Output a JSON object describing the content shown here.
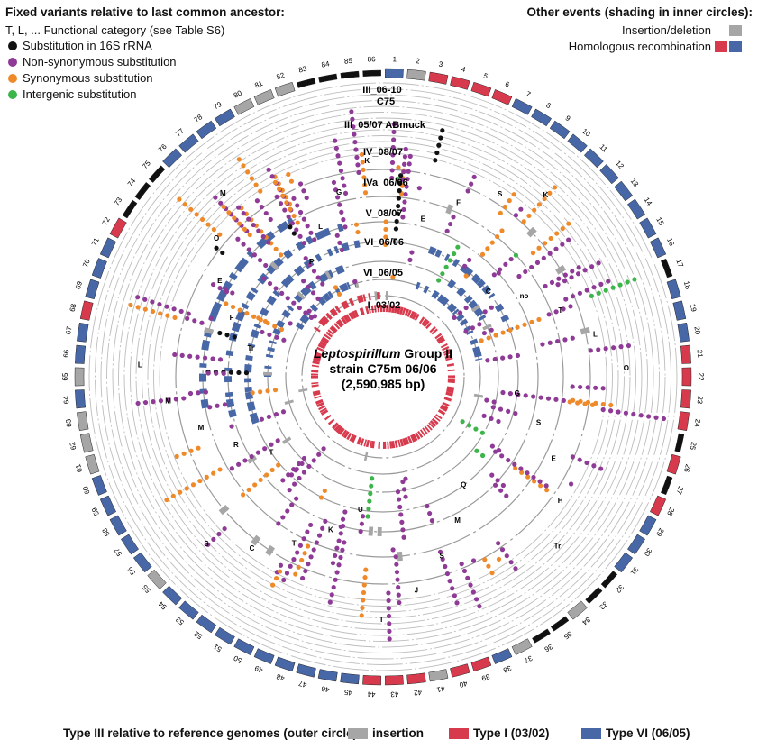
{
  "legend_fixed": {
    "title": "Fixed variants relative to last common ancestor:",
    "subtitle": "T, L, ... Functional category (see Table S6)",
    "items": [
      {
        "label": "Substitution in 16S rRNA",
        "color": "#111111"
      },
      {
        "label": "Non-synonymous substitution",
        "color": "#8e3a96"
      },
      {
        "label": "Synonymous substitution",
        "color": "#ef8a2b"
      },
      {
        "label": "Intergenic substitution",
        "color": "#3cb54a"
      }
    ]
  },
  "legend_other": {
    "title": "Other events (shading in inner circles):",
    "items": [
      {
        "label": "Insertion/deletion",
        "colors": [
          "#a6a6a6"
        ]
      },
      {
        "label": "Homologous recombination",
        "colors": [
          "#d83a4d",
          "#4767a7"
        ]
      }
    ]
  },
  "legend_bottom": {
    "title": "Type III relative to reference genomes (outer circle):",
    "items": [
      {
        "label": "insertion",
        "color": "#a6a6a6"
      },
      {
        "label": "Type I (03/02)",
        "color": "#d83a4d"
      },
      {
        "label": "Type VI (06/05)",
        "color": "#4767a7"
      }
    ]
  },
  "center": {
    "line1_italic": "Leptospirillum",
    "line1_rest": " Group II",
    "line2": "strain C75m 06/06",
    "line3": "(2,590,985 bp)"
  },
  "rings": [
    {
      "label": "III_06-10"
    },
    {
      "label": "C75"
    },
    {
      "label": "III_05/07 ABmuck"
    },
    {
      "label": "IV_08/07"
    },
    {
      "label": "IVa_06/06"
    },
    {
      "label": "V_08/07"
    },
    {
      "label": "VI_06/06"
    },
    {
      "label": "VI_06/05"
    },
    {
      "label": "I_03/02"
    }
  ],
  "segments": [
    "1",
    "2",
    "3",
    "4",
    "5",
    "6",
    "7",
    "8",
    "9",
    "10",
    "11",
    "12",
    "13",
    "14",
    "15",
    "16",
    "17",
    "18",
    "19",
    "20",
    "21",
    "22",
    "23",
    "24",
    "25",
    "26",
    "27",
    "28",
    "29",
    "30",
    "31",
    "32",
    "33",
    "34",
    "35",
    "36",
    "37",
    "38",
    "39",
    "40",
    "41",
    "42",
    "43",
    "44",
    "45",
    "46",
    "47",
    "48",
    "49",
    "50",
    "51",
    "52",
    "53",
    "54",
    "55",
    "56",
    "57",
    "58",
    "59",
    "60",
    "61",
    "62",
    "63",
    "64",
    "65",
    "66",
    "67",
    "68",
    "69",
    "70",
    "71",
    "72",
    "73",
    "74",
    "75",
    "76",
    "77",
    "78",
    "79",
    "80",
    "81",
    "82",
    "83",
    "84",
    "85",
    "86"
  ],
  "segment_colors": [
    "#4767a7",
    "#a6a6a6",
    "#d83a4d",
    "#d83a4d",
    "#d83a4d",
    "#d83a4d",
    "#4767a7",
    "#4767a7",
    "#4767a7",
    "#4767a7",
    "#4767a7",
    "#4767a7",
    "#4767a7",
    "#4767a7",
    "#4767a7",
    "#4767a7",
    "#111111",
    "#4767a7",
    "#4767a7",
    "#4767a7",
    "#d83a4d",
    "#d83a4d",
    "#d83a4d",
    "#d83a4d",
    "#111111",
    "#d83a4d",
    "#111111",
    "#d83a4d",
    "#4767a7",
    "#4767a7",
    "#4767a7",
    "#111111",
    "#111111",
    "#a6a6a6",
    "#111111",
    "#111111",
    "#a6a6a6",
    "#4767a7",
    "#d83a4d",
    "#d83a4d",
    "#a6a6a6",
    "#d83a4d",
    "#d83a4d",
    "#d83a4d",
    "#4767a7",
    "#4767a7",
    "#4767a7",
    "#4767a7",
    "#4767a7",
    "#4767a7",
    "#4767a7",
    "#4767a7",
    "#4767a7",
    "#4767a7",
    "#a6a6a6",
    "#4767a7",
    "#4767a7",
    "#4767a7",
    "#4767a7",
    "#4767a7",
    "#a6a6a6",
    "#a6a6a6",
    "#a6a6a6",
    "#4767a7",
    "#a6a6a6",
    "#4767a7",
    "#4767a7",
    "#d83a4d",
    "#4767a7",
    "#4767a7",
    "#4767a7",
    "#d83a4d",
    "#111111",
    "#111111",
    "#111111",
    "#4767a7",
    "#4767a7",
    "#4767a7",
    "#4767a7",
    "#a6a6a6",
    "#a6a6a6",
    "#a6a6a6",
    "#111111",
    "#111111",
    "#111111",
    "#111111"
  ],
  "category_labels": [
    "T",
    "E",
    "F",
    "S",
    "K",
    "C",
    "no",
    "T",
    "L",
    "O",
    "G",
    "S",
    "E",
    "H",
    "Tr",
    "Q",
    "M",
    "S",
    "J",
    "I",
    "U",
    "K",
    "T",
    "C",
    "S",
    "T",
    "R",
    "M",
    "M",
    "L",
    "Tr",
    "F",
    "E",
    "O",
    "M",
    "P",
    "L",
    "G",
    "K"
  ]
}
